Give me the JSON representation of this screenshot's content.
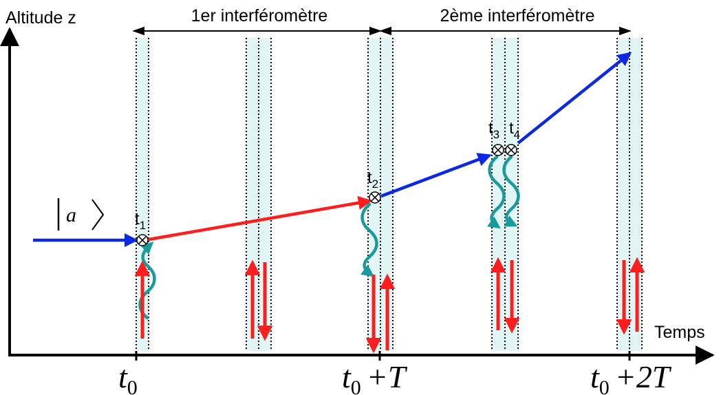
{
  "axes": {
    "y_label": "Altitude z",
    "x_label": "Temps"
  },
  "spans": {
    "first": "1er interféromètre",
    "second": "2ème interféromètre"
  },
  "state_ket": {
    "symbol": "a"
  },
  "events": {
    "t1": {
      "base": "t",
      "sub": "1"
    },
    "t2": {
      "base": "t",
      "sub": "2"
    },
    "t3": {
      "base": "t",
      "sub": "3"
    },
    "t4": {
      "base": "t",
      "sub": "4"
    }
  },
  "ticks": {
    "tick0": {
      "base": "t",
      "sub": "0",
      "suffix": ""
    },
    "tick1": {
      "base": "t",
      "sub": "0",
      "suffix": "+T"
    },
    "tick2": {
      "base": "t",
      "sub": "0",
      "suffix": "+2T"
    }
  },
  "colors": {
    "axis": "#000000",
    "pulse_band": "#e3f6f6",
    "path_blue": "#0a28e6",
    "path_red": "#ff1e1e",
    "photon_wave": "#1a9b9b",
    "beam_arrow": "#ff1e1e"
  }
}
